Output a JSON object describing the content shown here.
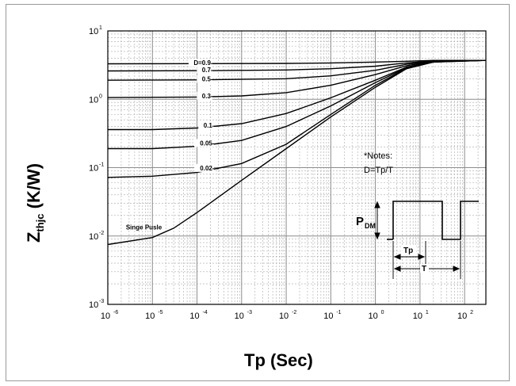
{
  "chart_data": {
    "type": "line",
    "xscale": "log",
    "yscale": "log",
    "xlim": [
      1e-06,
      300
    ],
    "ylim": [
      0.001,
      10
    ],
    "grid": true,
    "xlabel": "Tp (Sec)",
    "ylabel_main": "Z",
    "ylabel_sub": "thjc",
    "ylabel_unit": " (K/W)",
    "xticks": [
      {
        "value": 1e-06,
        "base": "10",
        "exp": "-6"
      },
      {
        "value": 1e-05,
        "base": "10",
        "exp": "-5"
      },
      {
        "value": 0.0001,
        "base": "10",
        "exp": "-4"
      },
      {
        "value": 0.001,
        "base": "10",
        "exp": "-3"
      },
      {
        "value": 0.01,
        "base": "10",
        "exp": "-2"
      },
      {
        "value": 0.1,
        "base": "10",
        "exp": "-1"
      },
      {
        "value": 1,
        "base": "10",
        "exp": "0"
      },
      {
        "value": 10,
        "base": "10",
        "exp": "1"
      },
      {
        "value": 100,
        "base": "10",
        "exp": "2"
      }
    ],
    "yticks": [
      {
        "value": 0.001,
        "base": "10",
        "exp": "-3"
      },
      {
        "value": 0.01,
        "base": "10",
        "exp": "-2"
      },
      {
        "value": 0.1,
        "base": "10",
        "exp": "-1"
      },
      {
        "value": 1,
        "base": "10",
        "exp": "0"
      },
      {
        "value": 10,
        "base": "10",
        "exp": "1"
      }
    ],
    "series": [
      {
        "name": "D=0.9",
        "label_x": 0.00024,
        "points": [
          [
            1e-06,
            3.3
          ],
          [
            0.0001,
            3.32
          ],
          [
            0.01,
            3.35
          ],
          [
            0.1,
            3.4
          ],
          [
            1,
            3.5
          ],
          [
            5,
            3.6
          ],
          [
            20,
            3.7
          ],
          [
            300,
            3.7
          ]
        ]
      },
      {
        "name": "0.7",
        "label_x": 0.00024,
        "points": [
          [
            1e-06,
            2.6
          ],
          [
            0.0001,
            2.62
          ],
          [
            0.01,
            2.68
          ],
          [
            0.1,
            2.8
          ],
          [
            1,
            3.05
          ],
          [
            5,
            3.4
          ],
          [
            20,
            3.65
          ],
          [
            300,
            3.7
          ]
        ]
      },
      {
        "name": "0.5",
        "label_x": 0.00024,
        "points": [
          [
            1e-06,
            1.9
          ],
          [
            0.0001,
            1.92
          ],
          [
            0.01,
            2.0
          ],
          [
            0.1,
            2.2
          ],
          [
            1,
            2.65
          ],
          [
            5,
            3.25
          ],
          [
            20,
            3.6
          ],
          [
            300,
            3.7
          ]
        ]
      },
      {
        "name": "0.3",
        "label_x": 0.00024,
        "points": [
          [
            1e-06,
            1.06
          ],
          [
            0.0001,
            1.08
          ],
          [
            0.001,
            1.12
          ],
          [
            0.01,
            1.25
          ],
          [
            0.1,
            1.6
          ],
          [
            1,
            2.3
          ],
          [
            5,
            3.1
          ],
          [
            20,
            3.6
          ],
          [
            300,
            3.7
          ]
        ]
      },
      {
        "name": "0.1",
        "label_x": 0.00026,
        "points": [
          [
            1e-06,
            0.36
          ],
          [
            1e-05,
            0.36
          ],
          [
            0.0001,
            0.38
          ],
          [
            0.001,
            0.44
          ],
          [
            0.01,
            0.62
          ],
          [
            0.1,
            1.05
          ],
          [
            1,
            1.9
          ],
          [
            5,
            2.95
          ],
          [
            20,
            3.55
          ],
          [
            300,
            3.7
          ]
        ]
      },
      {
        "name": "0.05",
        "label_x": 0.00026,
        "points": [
          [
            1e-06,
            0.19
          ],
          [
            1e-05,
            0.19
          ],
          [
            0.0001,
            0.205
          ],
          [
            0.001,
            0.25
          ],
          [
            0.01,
            0.4
          ],
          [
            0.1,
            0.8
          ],
          [
            1,
            1.75
          ],
          [
            5,
            2.9
          ],
          [
            20,
            3.55
          ],
          [
            300,
            3.7
          ]
        ]
      },
      {
        "name": "0.02",
        "label_x": 0.00026,
        "points": [
          [
            1e-06,
            0.072
          ],
          [
            1e-05,
            0.075
          ],
          [
            0.0001,
            0.085
          ],
          [
            0.001,
            0.115
          ],
          [
            0.01,
            0.22
          ],
          [
            0.1,
            0.6
          ],
          [
            1,
            1.6
          ],
          [
            5,
            2.85
          ],
          [
            20,
            3.5
          ],
          [
            300,
            3.7
          ]
        ]
      },
      {
        "name": "Singe Pusle",
        "label_x": 1e-06,
        "points": [
          [
            1e-06,
            0.0075
          ],
          [
            1e-05,
            0.0095
          ],
          [
            3e-05,
            0.013
          ],
          [
            0.0001,
            0.022
          ],
          [
            0.001,
            0.065
          ],
          [
            0.01,
            0.19
          ],
          [
            0.1,
            0.55
          ],
          [
            1,
            1.5
          ],
          [
            5,
            2.8
          ],
          [
            20,
            3.5
          ],
          [
            300,
            3.7
          ]
        ]
      }
    ],
    "notes_line1": "*Notes:",
    "notes_line2": "D=Tp/T",
    "inset_label_main": "P",
    "inset_label_sub": "DM",
    "inset_tp_label": "Tp",
    "inset_t_label": "T",
    "line_color": "#000000",
    "grid_major_color": "#8c8c8c",
    "grid_minor_color": "#a8a8a8"
  }
}
